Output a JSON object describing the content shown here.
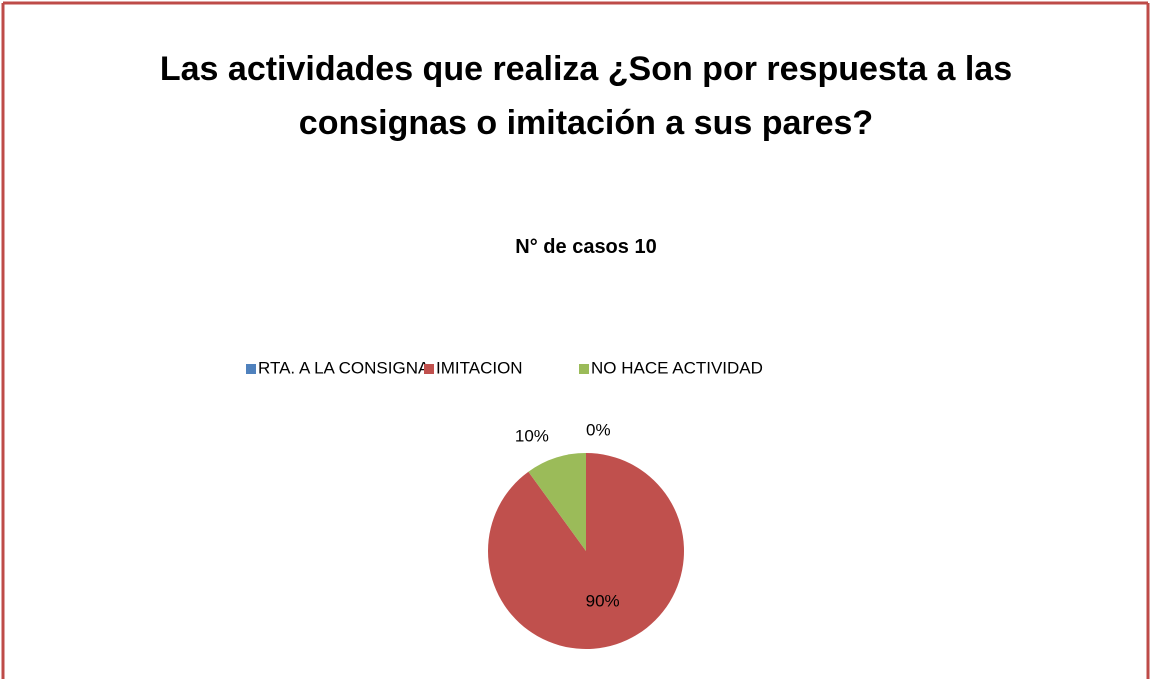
{
  "chart_data": {
    "type": "pie",
    "title": "Las actividades que realiza ¿Son por respuesta a las consignas o imitación a sus pares?",
    "subtitle": "N° de casos 10",
    "categories": [
      "RTA. A LA CONSIGNA",
      "IMITACION",
      "NO HACE ACTIVIDAD"
    ],
    "values": [
      0,
      90,
      10
    ],
    "value_labels": [
      "0%",
      "90%",
      "10%"
    ],
    "colors": [
      "#4f81bd",
      "#c0504d",
      "#9bbb59"
    ],
    "legend": "top"
  }
}
